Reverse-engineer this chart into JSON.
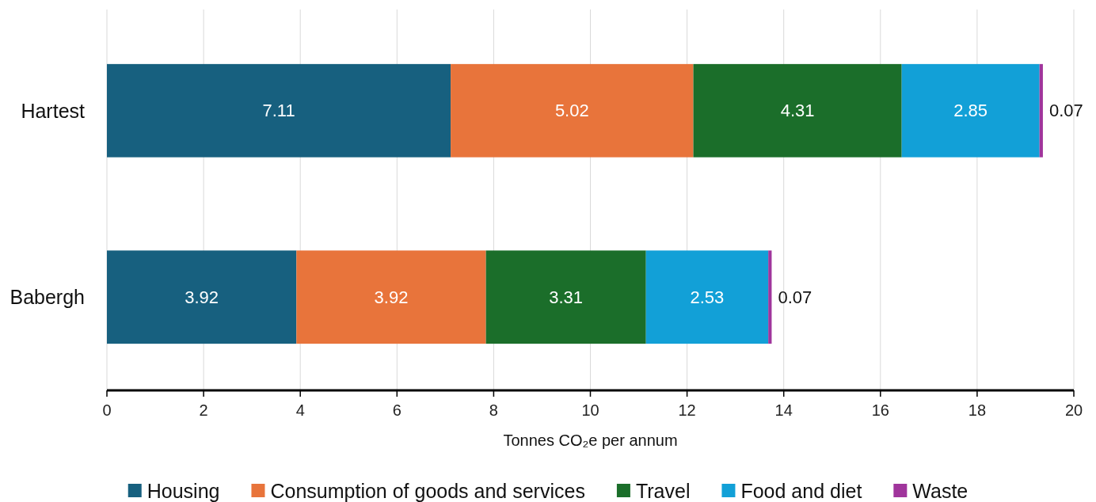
{
  "chart_data": {
    "type": "bar",
    "orientation": "horizontal",
    "stacked": true,
    "categories": [
      "Hartest",
      "Babergh"
    ],
    "series": [
      {
        "name": "Housing",
        "color": "#17607f",
        "values": [
          7.11,
          3.92
        ]
      },
      {
        "name": "Consumption of goods and services",
        "color": "#e8743b",
        "values": [
          5.02,
          3.92
        ]
      },
      {
        "name": "Travel",
        "color": "#1b6e2a",
        "values": [
          4.31,
          3.31
        ]
      },
      {
        "name": "Food and diet",
        "color": "#12a0d7",
        "values": [
          2.85,
          2.53
        ]
      },
      {
        "name": "Waste",
        "color": "#a0359c",
        "values": [
          0.07,
          0.07
        ]
      }
    ],
    "xlim": [
      0,
      20
    ],
    "xticks": [
      0,
      2,
      4,
      6,
      8,
      10,
      12,
      14,
      16,
      18,
      20
    ],
    "xlabel": "Tonnes CO₂e per annum",
    "grid": "x",
    "legend": "bottom",
    "data_labels": true
  }
}
